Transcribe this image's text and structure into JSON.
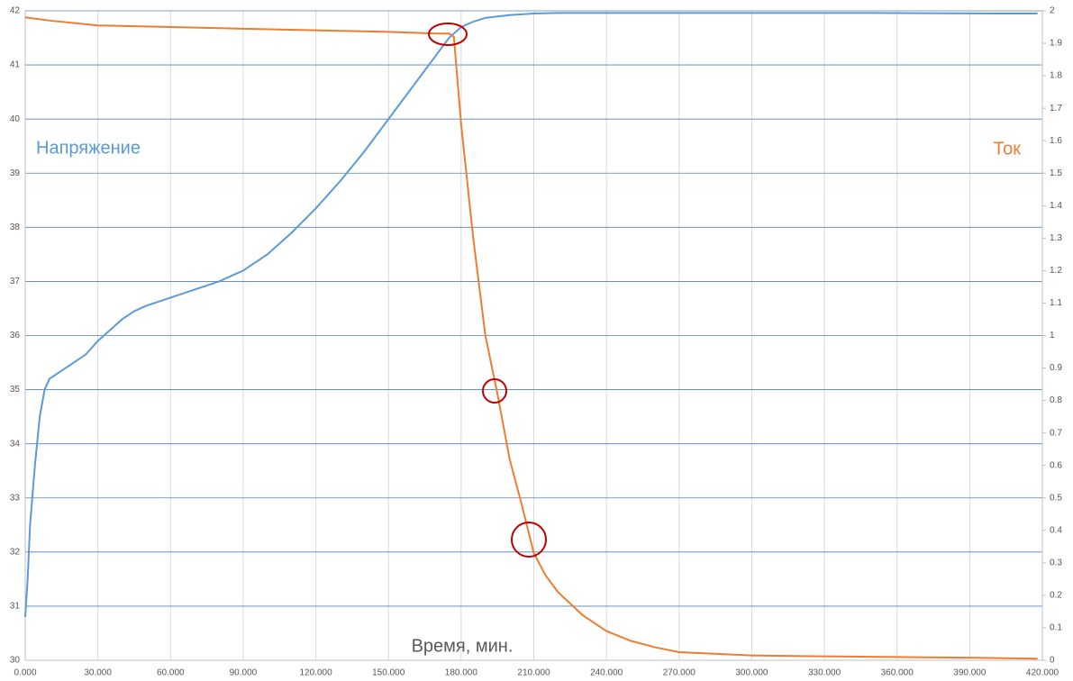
{
  "chart_data": {
    "type": "line",
    "x_label": "Время, мин.",
    "xlim": [
      0,
      420
    ],
    "xticks": [
      {
        "value": 0,
        "label": "0.000"
      },
      {
        "value": 30,
        "label": "30.000"
      },
      {
        "value": 60,
        "label": "60.000"
      },
      {
        "value": 90,
        "label": "90.000"
      },
      {
        "value": 120,
        "label": "120.000"
      },
      {
        "value": 150,
        "label": "150.000"
      },
      {
        "value": 180,
        "label": "180.000"
      },
      {
        "value": 210,
        "label": "210.000"
      },
      {
        "value": 240,
        "label": "240.000"
      },
      {
        "value": 270,
        "label": "270.000"
      },
      {
        "value": 300,
        "label": "300.000"
      },
      {
        "value": 330,
        "label": "330.000"
      },
      {
        "value": 360,
        "label": "360.000"
      },
      {
        "value": 390,
        "label": "390.000"
      },
      {
        "value": 420,
        "label": "420.000"
      }
    ],
    "ylim": [
      30,
      42
    ],
    "yticks": [
      30,
      31,
      32,
      33,
      34,
      35,
      36,
      37,
      38,
      39,
      40,
      41,
      42
    ],
    "y2lim": [
      0,
      2
    ],
    "y2ticks": [
      0,
      0.1,
      0.2,
      0.3,
      0.4,
      0.5,
      0.6,
      0.7,
      0.8,
      0.9,
      1,
      1.1,
      1.2,
      1.3,
      1.4,
      1.5,
      1.6,
      1.7,
      1.8,
      1.9,
      2
    ],
    "grid": true,
    "series": [
      {
        "name": "Напряжение",
        "color": "#5b9bd5",
        "x": [
          0,
          1,
          2,
          4,
          6,
          8,
          10,
          15,
          20,
          25,
          30,
          35,
          40,
          45,
          50,
          60,
          70,
          80,
          90,
          100,
          110,
          120,
          130,
          140,
          150,
          160,
          170,
          175,
          180,
          185,
          190,
          200,
          210,
          220,
          250,
          300,
          350,
          400,
          418
        ],
        "values": [
          30.8,
          31.5,
          32.5,
          33.6,
          34.5,
          35.0,
          35.2,
          35.35,
          35.5,
          35.65,
          35.9,
          36.1,
          36.3,
          36.45,
          36.55,
          36.7,
          36.85,
          37.0,
          37.2,
          37.5,
          37.9,
          38.35,
          38.85,
          39.4,
          40.0,
          40.6,
          41.2,
          41.5,
          41.7,
          41.8,
          41.87,
          41.92,
          41.95,
          41.96,
          41.96,
          41.96,
          41.96,
          41.95,
          41.95
        ]
      },
      {
        "name": "Ток",
        "color": "#ed7d31",
        "axis": "y2",
        "x": [
          0,
          10,
          30,
          60,
          90,
          120,
          150,
          170,
          175,
          177,
          180,
          185,
          190,
          195,
          200,
          205,
          210,
          215,
          220,
          230,
          240,
          250,
          260,
          270,
          300,
          330,
          360,
          390,
          418
        ],
        "values": [
          1.98,
          1.97,
          1.955,
          1.95,
          1.945,
          1.94,
          1.935,
          1.93,
          1.93,
          1.92,
          1.65,
          1.3,
          1.0,
          0.82,
          0.62,
          0.48,
          0.33,
          0.26,
          0.21,
          0.14,
          0.09,
          0.06,
          0.04,
          0.025,
          0.015,
          0.012,
          0.01,
          0.008,
          0.005
        ]
      }
    ]
  }
}
